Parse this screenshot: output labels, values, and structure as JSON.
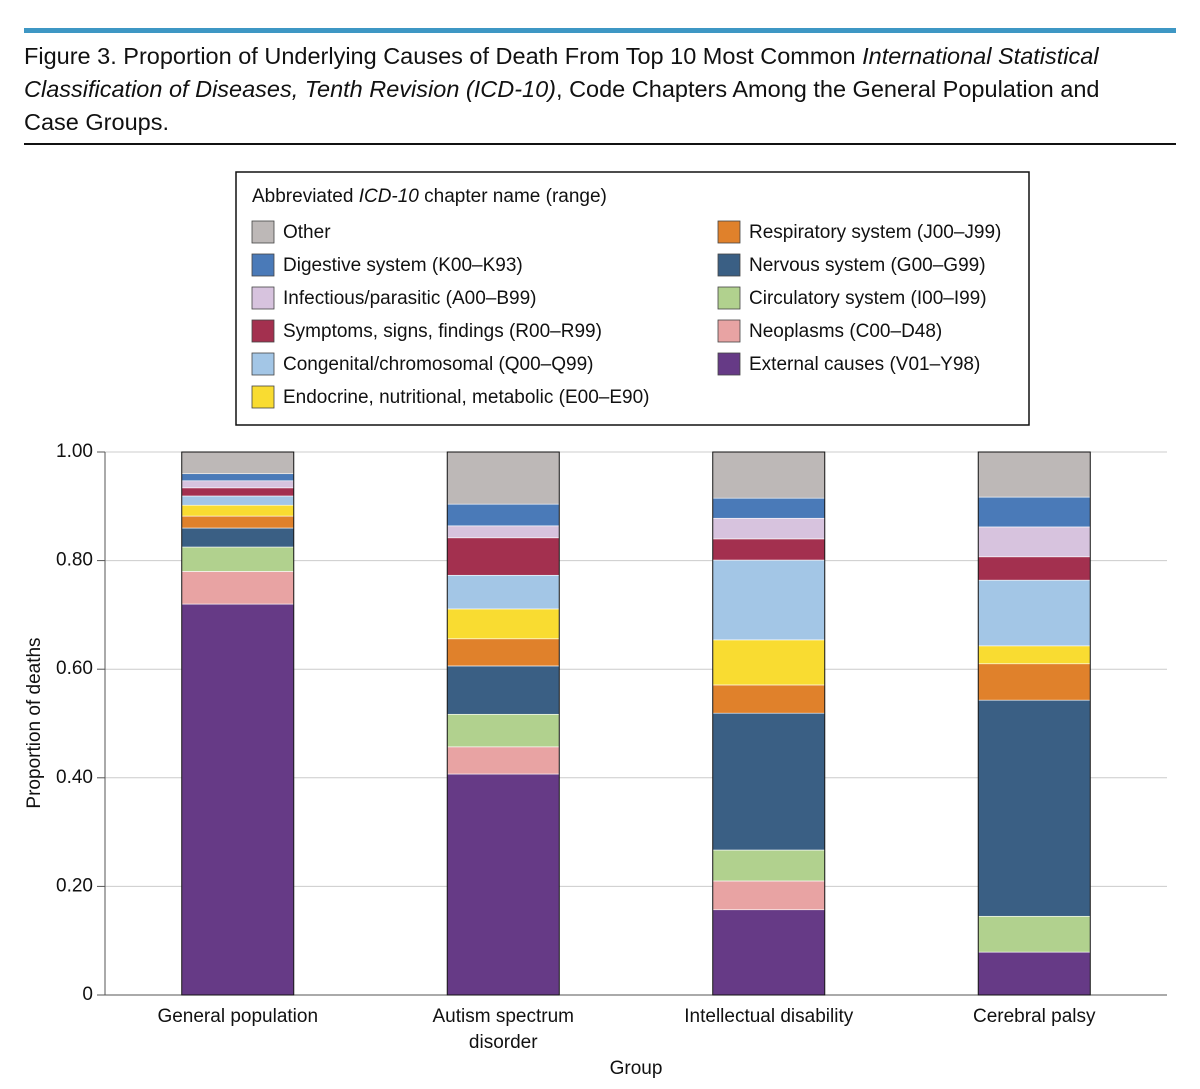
{
  "chart_data": {
    "type": "stacked_bar",
    "title": [
      "Figure 3. Proportion of Underlying Causes of Death From Top 10 Most Common ",
      "International Statistical Classification of Diseases, Tenth Revision (ICD-10)",
      ", Code Chapters Among the General Population and Case Groups."
    ],
    "legend_title": [
      "Abbreviated ",
      "ICD-10",
      " chapter name (range)"
    ],
    "x_label": "Group",
    "y_label": "Proportion of deaths",
    "categories": [
      "General population",
      "Autism spectrum disorder",
      "Intellectual disability",
      "Cerebral palsy"
    ],
    "ylim": [
      0,
      1
    ],
    "yticks": [
      0,
      {
        "value": 0.2,
        "label": "0.20"
      },
      {
        "value": 0.4,
        "label": "0.40"
      },
      {
        "value": 0.6,
        "label": "0.60"
      },
      {
        "value": 0.8,
        "label": "0.80"
      },
      {
        "value": 1,
        "label": "1.00"
      }
    ],
    "grid": true,
    "series": [
      {
        "name": "External causes (V01–Y98)",
        "color": "#663a86",
        "values": [
          0.72,
          0.407,
          0.157,
          0.079
        ]
      },
      {
        "name": "Neoplasms (C00–D48)",
        "color": "#e8a3a3",
        "values": [
          0.06,
          0.05,
          0.053,
          0
        ]
      },
      {
        "name": "Circulatory system (I00–I99)",
        "color": "#b1d18e",
        "values": [
          0.045,
          0.06,
          0.057,
          0.066
        ]
      },
      {
        "name": "Nervous system (G00–G99)",
        "color": "#3a5f84",
        "values": [
          0.035,
          0.089,
          0.252,
          0.398
        ]
      },
      {
        "name": "Respiratory system (J00–J99)",
        "color": "#e0812b",
        "values": [
          0.022,
          0.05,
          0.052,
          0.067
        ]
      },
      {
        "name": "Endocrine, nutritional, metabolic (E00–E90)",
        "color": "#f9dc31",
        "values": [
          0.02,
          0.055,
          0.083,
          0.033
        ]
      },
      {
        "name": "Congenital/chromosomal (Q00–Q99)",
        "color": "#a3c6e6",
        "values": [
          0.017,
          0.062,
          0.147,
          0.121
        ]
      },
      {
        "name": "Symptoms, signs, findings (R00–R99)",
        "color": "#a3304f",
        "values": [
          0.015,
          0.069,
          0.039,
          0.043
        ]
      },
      {
        "name": "Infectious/parasitic (A00–B99)",
        "color": "#d7c3de",
        "values": [
          0.013,
          0.022,
          0.038,
          0.055
        ]
      },
      {
        "name": "Digestive system (K00–K93)",
        "color": "#4a7ab8",
        "values": [
          0.013,
          0.04,
          0.037,
          0.055
        ]
      },
      {
        "name": "Other",
        "color": "#bdb8b7",
        "values": [
          0.04,
          0.096,
          0.085,
          0.083
        ]
      }
    ]
  }
}
